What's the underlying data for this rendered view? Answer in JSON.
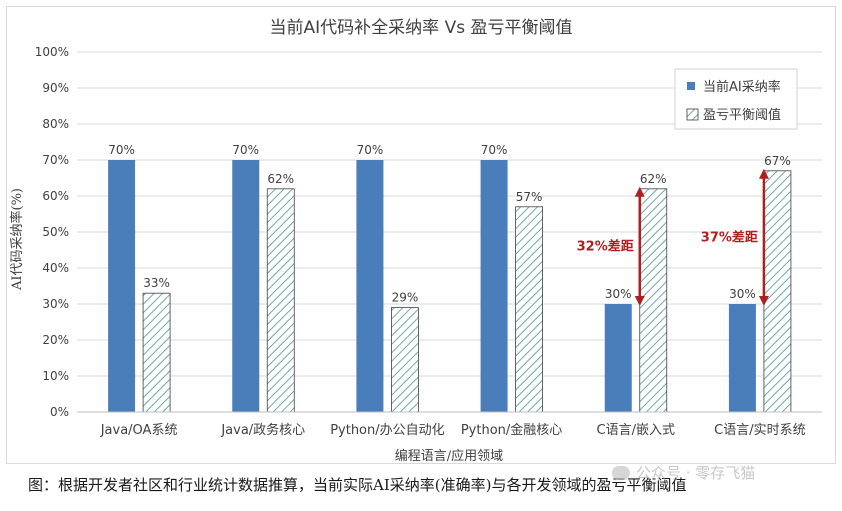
{
  "chart_data": {
    "type": "bar",
    "title": "当前AI代码补全采纳率 Vs 盈亏平衡阈值",
    "xlabel": "编程语言/应用领域",
    "ylabel": "AI代码采纳率(%)",
    "ylim": [
      0,
      100
    ],
    "yticks": [
      "0%",
      "10%",
      "20%",
      "30%",
      "40%",
      "50%",
      "60%",
      "70%",
      "80%",
      "90%",
      "100%"
    ],
    "grid": true,
    "legend_position": "top-right",
    "categories": [
      "Java/OA系统",
      "Java/政务核心",
      "Python/办公自动化",
      "Python/金融核心",
      "C语言/嵌入式",
      "C语言/实时系统"
    ],
    "series": [
      {
        "name": "当前AI采纳率",
        "values": [
          70,
          70,
          70,
          70,
          30,
          30
        ],
        "labels": [
          "70%",
          "70%",
          "70%",
          "70%",
          "30%",
          "30%"
        ],
        "color": "#4a7ebb",
        "pattern": "solid"
      },
      {
        "name": "盈亏平衡阈值",
        "values": [
          33,
          62,
          29,
          57,
          62,
          67
        ],
        "labels": [
          "33%",
          "62%",
          "29%",
          "57%",
          "62%",
          "67%"
        ],
        "color": "#6fa9a6",
        "pattern": "hatched"
      }
    ],
    "annotations": [
      {
        "category_index": 4,
        "from": 30,
        "to": 62,
        "text": "32%差距",
        "color": "#b01f1f"
      },
      {
        "category_index": 5,
        "from": 30,
        "to": 67,
        "text": "37%差距",
        "color": "#b01f1f"
      }
    ]
  },
  "caption": "图：根据开发者社区和行业统计数据推算，当前实际AI采纳率(准确率)与各开发领域的盈亏平衡阈值",
  "watermark": "公众号 · 零存飞猫"
}
